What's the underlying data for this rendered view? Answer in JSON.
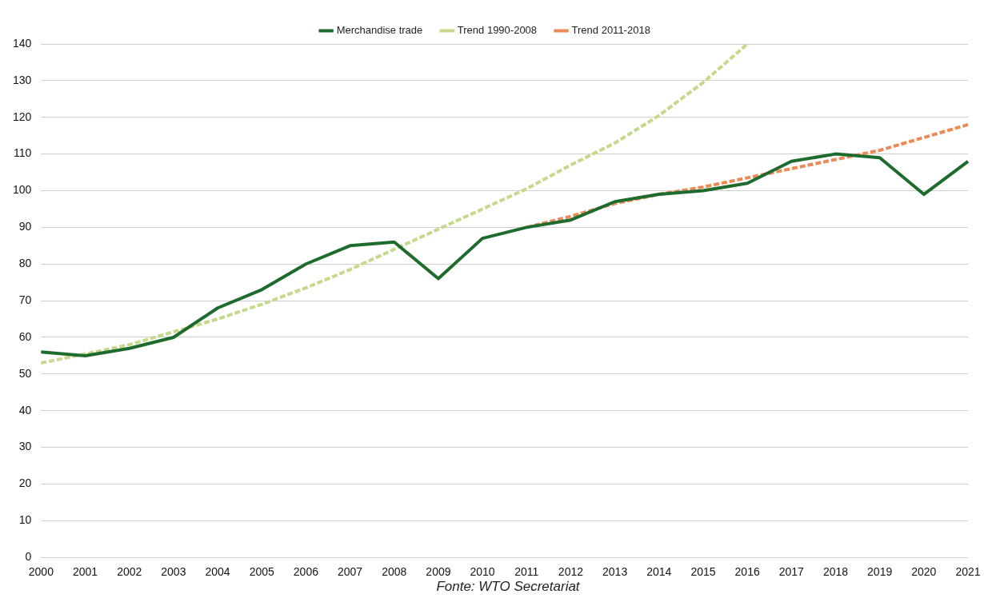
{
  "chart_data": {
    "type": "line",
    "categories": [
      "2000",
      "2001",
      "2002",
      "2003",
      "2004",
      "2005",
      "2006",
      "2007",
      "2008",
      "2009",
      "2010",
      "2011",
      "2012",
      "2013",
      "2014",
      "2015",
      "2016",
      "2017",
      "2018",
      "2019",
      "2020",
      "2021"
    ],
    "series": [
      {
        "name": "Merchandise trade",
        "color": "#1e6b2e",
        "line_style": "solid",
        "values": [
          56,
          55,
          57,
          60,
          68,
          73,
          80,
          85,
          86,
          76,
          87,
          90,
          92,
          97,
          99,
          100,
          102,
          108,
          110,
          109,
          99,
          108
        ]
      },
      {
        "name": "Trend 1990-2008",
        "color": "#c5d98a",
        "line_style": "dashed",
        "values": [
          53,
          55.5,
          58,
          61.5,
          65,
          69,
          73.5,
          78.5,
          84,
          89.5,
          95,
          100.5,
          107,
          113,
          120.5,
          129.5,
          140,
          null,
          null,
          null,
          null,
          null
        ]
      },
      {
        "name": "Trend 2011-2018",
        "color": "#ec8a55",
        "line_style": "dashed",
        "values": [
          null,
          null,
          null,
          null,
          null,
          null,
          null,
          null,
          null,
          null,
          null,
          90,
          93,
          96.5,
          99,
          101,
          103.5,
          106,
          108.5,
          111,
          114.5,
          118
        ]
      }
    ],
    "ylim": [
      0,
      140
    ],
    "yticks": [
      0,
      10,
      20,
      30,
      40,
      50,
      60,
      70,
      80,
      90,
      100,
      110,
      120,
      130,
      140
    ],
    "grid": "y",
    "legend": "top",
    "marker": "none",
    "annotations": [
      "Fonte: WTO Secretariat"
    ]
  }
}
